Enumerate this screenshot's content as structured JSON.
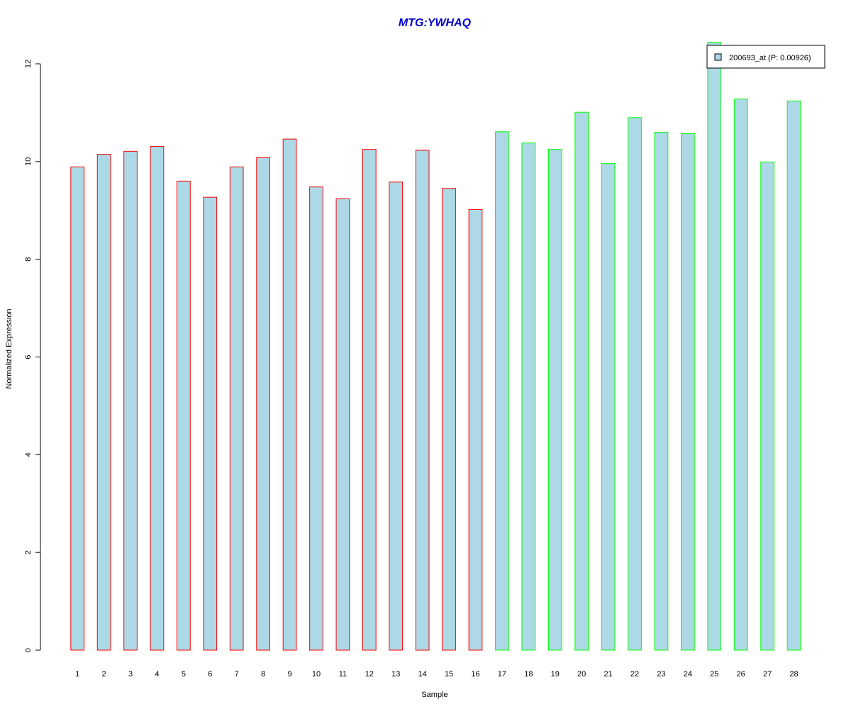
{
  "chart_data": {
    "type": "bar",
    "title": "MTG:YWHAQ",
    "xlabel": "Sample",
    "ylabel": "Normalized Expression",
    "ylim": [
      0,
      12
    ],
    "yticks": [
      "0",
      "2",
      "4",
      "6",
      "8",
      "10",
      "12"
    ],
    "categories": [
      "1",
      "2",
      "3",
      "4",
      "5",
      "6",
      "7",
      "8",
      "9",
      "10",
      "11",
      "12",
      "13",
      "14",
      "15",
      "16",
      "17",
      "18",
      "19",
      "20",
      "21",
      "22",
      "23",
      "24",
      "25",
      "26",
      "27",
      "28"
    ],
    "series": [
      {
        "name": "200693_at (P: 0.00926)",
        "values": [
          9.89,
          10.15,
          10.21,
          10.31,
          9.6,
          9.27,
          9.89,
          10.08,
          10.46,
          9.48,
          9.24,
          10.25,
          9.58,
          10.23,
          9.45,
          9.02,
          10.61,
          10.38,
          10.25,
          11.01,
          9.96,
          10.9,
          10.6,
          10.57,
          12.44,
          11.28,
          9.99,
          11.24
        ]
      }
    ],
    "groups": [
      {
        "from": 1,
        "to": 16,
        "border_color": "#ff0000"
      },
      {
        "from": 17,
        "to": 28,
        "border_color": "#00ff00"
      }
    ],
    "legend": {
      "position": "top-right",
      "label": "200693_at (P: 0.00926)"
    },
    "colors": {
      "bar_fill": "#add8e6",
      "title": "#0000cc",
      "axis": "#000000"
    },
    "grid": false
  }
}
